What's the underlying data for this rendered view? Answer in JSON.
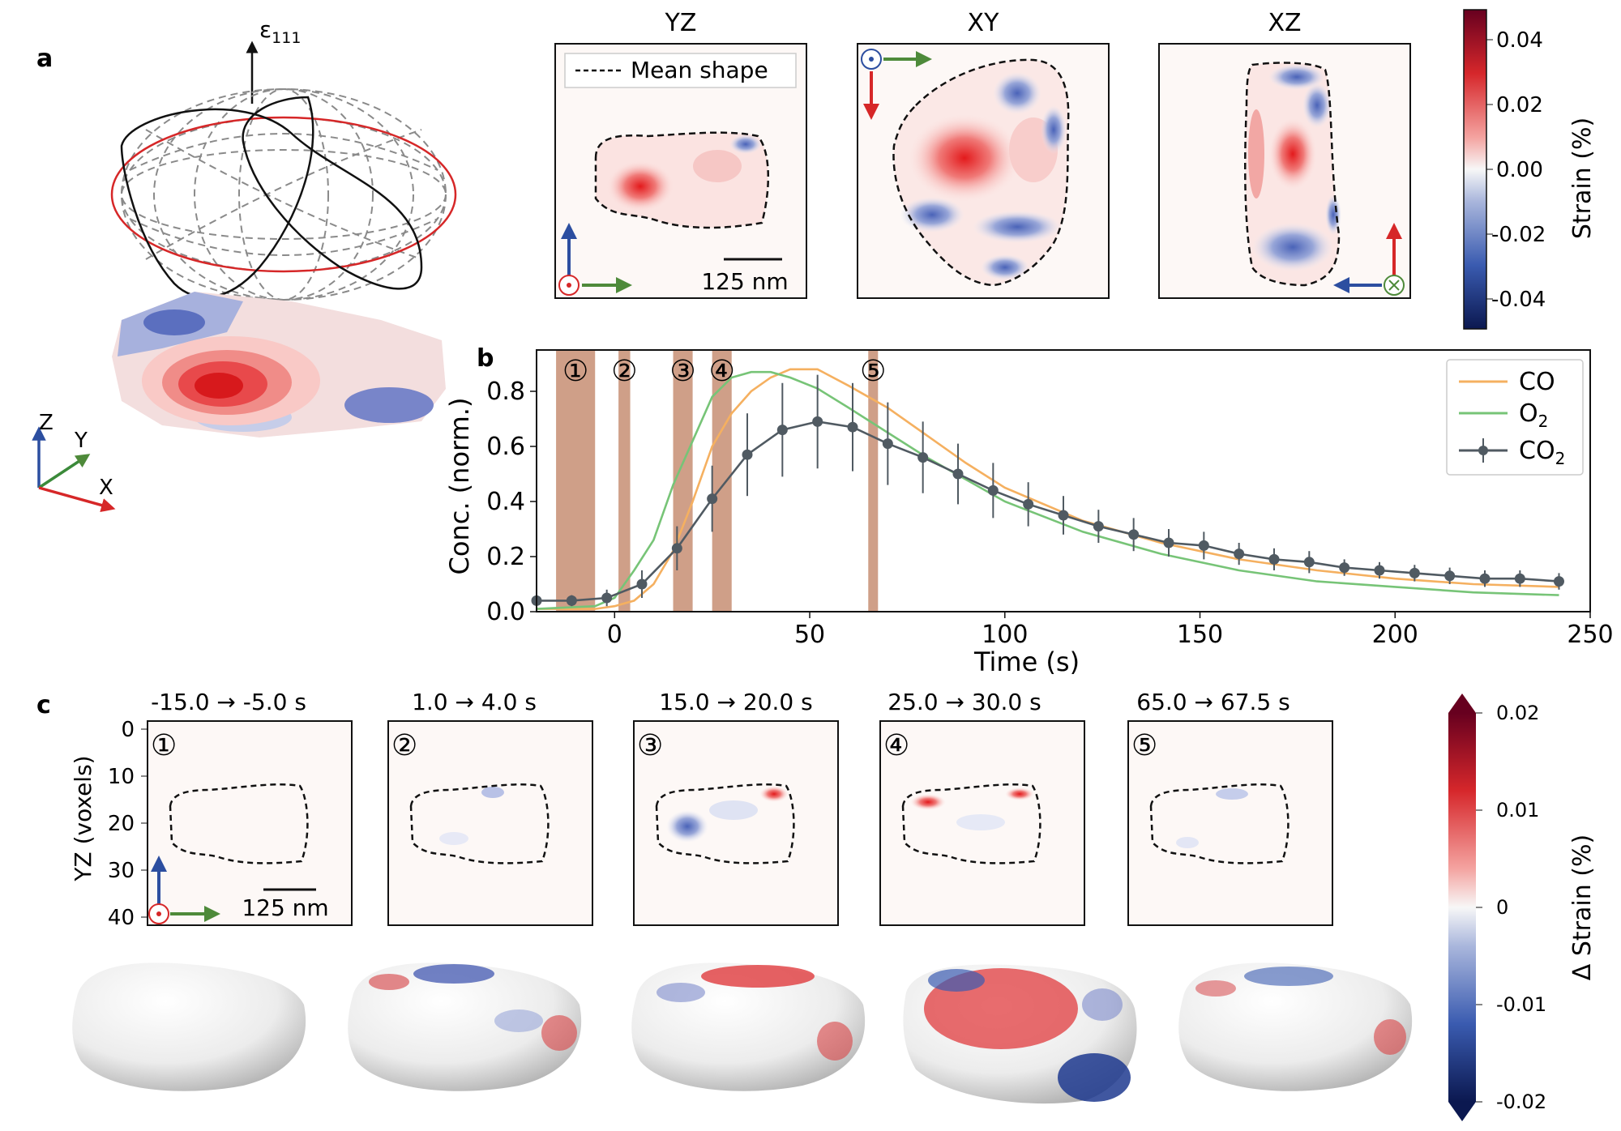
{
  "panel_a": {
    "label": "a",
    "axis_label": "ε",
    "axis_sub": "111",
    "triad": {
      "z": "Z",
      "y": "Y",
      "x": "X"
    },
    "views": [
      {
        "title": "YZ",
        "legend": "Mean shape",
        "scalebar": "125 nm"
      },
      {
        "title": "XY"
      },
      {
        "title": "XZ"
      }
    ],
    "colorbar": {
      "label": "Strain (%)",
      "ticks": [
        "0.04",
        "0.02",
        "0.00",
        "-0.02",
        "-0.04"
      ]
    }
  },
  "panel_c": {
    "label": "c",
    "ylabel": "YZ (voxels)",
    "yticks": [
      "0",
      "10",
      "20",
      "30",
      "40"
    ],
    "scalebar": "125 nm",
    "slices": [
      {
        "marker": "①",
        "range": "-15.0  → -5.0 s"
      },
      {
        "marker": "②",
        "range": "1.0  → 4.0 s"
      },
      {
        "marker": "③",
        "range": "15.0 → 20.0 s"
      },
      {
        "marker": "④",
        "range": "25.0 → 30.0 s"
      },
      {
        "marker": "⑤",
        "range": "65.0 → 67.5 s"
      }
    ],
    "colorbar": {
      "label": "Δ Strain (%)",
      "ticks": [
        "0.02",
        "0.01",
        "0",
        "-0.01",
        "-0.02"
      ]
    }
  },
  "colors": {
    "co": "#f5b060",
    "o2": "#77c477",
    "co2": "#505a62",
    "band": "#cf9f88",
    "red": "#d62728",
    "blue": "#2c4ea0",
    "green": "#4e8a3a"
  },
  "chart_data": {
    "type": "line",
    "panel_label": "b",
    "xlabel": "Time (s)",
    "ylabel": "Conc. (norm.)",
    "xlim": [
      -20,
      250
    ],
    "ylim": [
      0,
      0.95
    ],
    "xticks": [
      0,
      50,
      100,
      150,
      200,
      250
    ],
    "yticks": [
      0.0,
      0.2,
      0.4,
      0.6,
      0.8
    ],
    "bands": [
      {
        "label": "①",
        "start": -15.0,
        "end": -5.0
      },
      {
        "label": "②",
        "start": 1.0,
        "end": 4.0
      },
      {
        "label": "③",
        "start": 15.0,
        "end": 20.0
      },
      {
        "label": "④",
        "start": 25.0,
        "end": 30.0
      },
      {
        "label": "⑤",
        "start": 65.0,
        "end": 67.5
      }
    ],
    "legend": [
      {
        "name": "CO",
        "sub": ""
      },
      {
        "name": "O",
        "sub": "2"
      },
      {
        "name": "CO",
        "sub": "2"
      }
    ],
    "series": [
      {
        "name": "CO",
        "x": [
          -20,
          -5,
          0,
          5,
          10,
          15,
          20,
          25,
          30,
          35,
          40,
          45,
          52,
          60,
          70,
          80,
          90,
          100,
          120,
          140,
          160,
          180,
          200,
          220,
          242
        ],
        "y": [
          0.01,
          0.01,
          0.02,
          0.04,
          0.1,
          0.22,
          0.4,
          0.6,
          0.72,
          0.8,
          0.85,
          0.88,
          0.88,
          0.82,
          0.74,
          0.64,
          0.54,
          0.45,
          0.33,
          0.25,
          0.19,
          0.15,
          0.12,
          0.1,
          0.09
        ]
      },
      {
        "name": "O2",
        "x": [
          -20,
          -5,
          0,
          5,
          10,
          15,
          20,
          25,
          30,
          35,
          40,
          45,
          52,
          60,
          70,
          80,
          90,
          100,
          120,
          140,
          160,
          180,
          200,
          220,
          242
        ],
        "y": [
          0.01,
          0.02,
          0.05,
          0.15,
          0.26,
          0.46,
          0.62,
          0.78,
          0.85,
          0.87,
          0.87,
          0.85,
          0.81,
          0.74,
          0.65,
          0.56,
          0.48,
          0.4,
          0.29,
          0.21,
          0.15,
          0.11,
          0.09,
          0.07,
          0.06
        ]
      },
      {
        "name": "CO2",
        "x": [
          -20,
          -11,
          -2,
          7,
          16,
          25,
          34,
          43,
          52,
          61,
          70,
          79,
          88,
          97,
          106,
          115,
          124,
          133,
          142,
          151,
          160,
          169,
          178,
          187,
          196,
          205,
          214,
          223,
          232,
          242
        ],
        "y": [
          0.04,
          0.04,
          0.05,
          0.1,
          0.23,
          0.41,
          0.57,
          0.66,
          0.69,
          0.67,
          0.61,
          0.56,
          0.5,
          0.44,
          0.39,
          0.35,
          0.31,
          0.28,
          0.25,
          0.24,
          0.21,
          0.19,
          0.18,
          0.16,
          0.15,
          0.14,
          0.13,
          0.12,
          0.12,
          0.11
        ],
        "err": [
          0.02,
          0.02,
          0.03,
          0.05,
          0.08,
          0.12,
          0.15,
          0.17,
          0.17,
          0.16,
          0.15,
          0.13,
          0.11,
          0.1,
          0.08,
          0.07,
          0.06,
          0.06,
          0.05,
          0.05,
          0.04,
          0.04,
          0.04,
          0.03,
          0.03,
          0.03,
          0.03,
          0.03,
          0.03,
          0.03
        ]
      }
    ]
  }
}
